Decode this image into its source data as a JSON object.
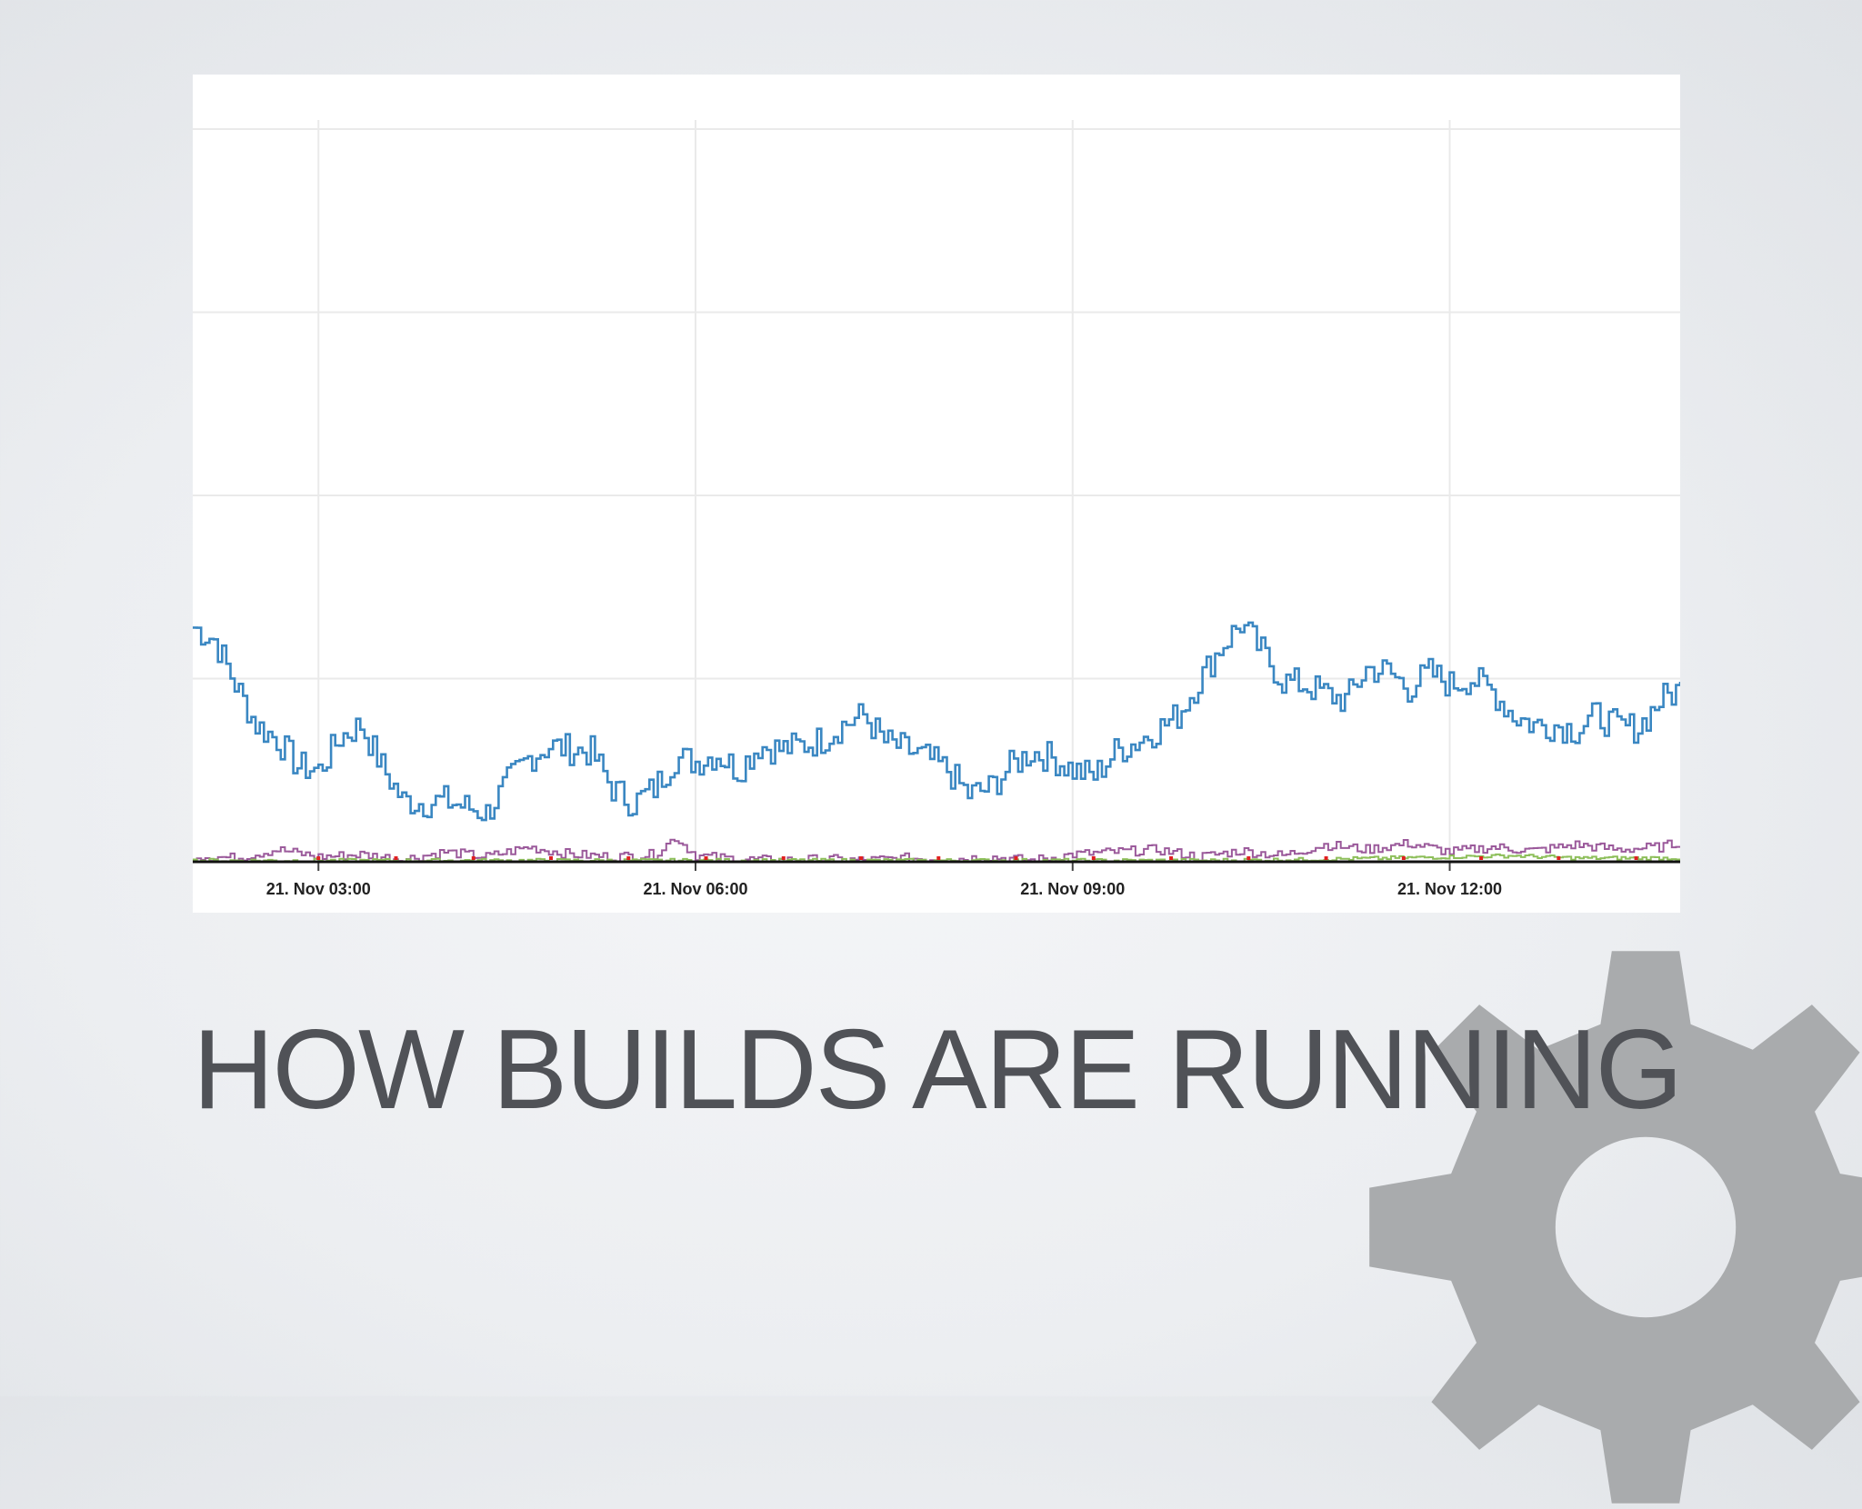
{
  "slide": {
    "title": "HOW BUILDS ARE RUNNING",
    "background_color": "#eceef1",
    "gear_color": "#a9abad",
    "logo_icon": "gear-icon"
  },
  "chart_data": {
    "type": "line",
    "title": "",
    "xlabel": "",
    "ylabel": "",
    "x_tick_labels": [
      "21. Nov 03:00",
      "21. Nov 06:00",
      "21. Nov 09:00",
      "21. Nov 12:00"
    ],
    "xlim": [
      "21. Nov 02:00",
      "21. Nov 13:50"
    ],
    "ylim": [
      0,
      600
    ],
    "y_gridlines": [
      150,
      300,
      450,
      600
    ],
    "grid": true,
    "legend": "none",
    "line_style": "step",
    "series": [
      {
        "color": "#3a87c2",
        "x": [
          "02:00",
          "02:10",
          "02:20",
          "02:30",
          "02:40",
          "02:50",
          "03:00",
          "03:10",
          "03:20",
          "03:30",
          "03:40",
          "03:50",
          "04:00",
          "04:10",
          "04:20",
          "04:30",
          "04:40",
          "04:50",
          "05:00",
          "05:10",
          "05:20",
          "05:30",
          "05:40",
          "05:50",
          "06:00",
          "06:10",
          "06:20",
          "06:30",
          "06:40",
          "06:50",
          "07:00",
          "07:10",
          "07:20",
          "07:30",
          "07:40",
          "07:50",
          "08:00",
          "08:10",
          "08:20",
          "08:30",
          "08:40",
          "08:50",
          "09:00",
          "09:10",
          "09:20",
          "09:30",
          "09:40",
          "09:50",
          "10:00",
          "10:10",
          "10:20",
          "10:30",
          "10:40",
          "10:50",
          "11:00",
          "11:10",
          "11:20",
          "11:30",
          "11:40",
          "11:50",
          "12:00",
          "12:10",
          "12:20",
          "12:30",
          "12:40",
          "12:50",
          "13:00",
          "13:10",
          "13:20",
          "13:30",
          "13:40",
          "13:50"
        ],
        "values": [
          192,
          182,
          145,
          112,
          100,
          78,
          75,
          102,
          112,
          78,
          50,
          48,
          50,
          45,
          40,
          65,
          85,
          95,
          92,
          90,
          60,
          48,
          60,
          85,
          82,
          88,
          75,
          95,
          92,
          95,
          100,
          112,
          120,
          98,
          92,
          85,
          75,
          55,
          60,
          78,
          90,
          85,
          75,
          70,
          90,
          98,
          108,
          120,
          148,
          175,
          195,
          172,
          148,
          145,
          138,
          132,
          158,
          156,
          142,
          155,
          145,
          150,
          140,
          120,
          112,
          112,
          108,
          120,
          110,
          110,
          132,
          142
        ]
      },
      {
        "color": "#9b5a9b",
        "x": [
          "02:00",
          "02:20",
          "02:40",
          "03:00",
          "03:20",
          "03:40",
          "04:00",
          "04:20",
          "04:40",
          "05:00",
          "05:20",
          "05:40",
          "05:50",
          "06:00",
          "06:20",
          "06:40",
          "07:00",
          "07:20",
          "07:40",
          "08:00",
          "08:20",
          "08:40",
          "09:00",
          "09:20",
          "09:40",
          "10:00",
          "10:20",
          "10:40",
          "11:00",
          "11:20",
          "11:40",
          "12:00",
          "12:20",
          "12:40",
          "13:00",
          "13:20",
          "13:40",
          "13:50"
        ],
        "values": [
          5,
          3,
          10,
          4,
          6,
          2,
          8,
          4,
          12,
          6,
          4,
          6,
          20,
          5,
          2,
          1,
          2,
          1,
          3,
          2,
          4,
          1,
          6,
          8,
          10,
          4,
          9,
          5,
          14,
          10,
          15,
          8,
          12,
          9,
          14,
          10,
          12,
          16
        ]
      },
      {
        "color": "#8dbf5a",
        "x": [
          "02:00",
          "06:00",
          "10:00",
          "11:00",
          "11:30",
          "12:00",
          "12:30",
          "13:00",
          "13:50"
        ],
        "values": [
          1,
          1,
          1,
          2,
          3,
          4,
          5,
          3,
          3
        ]
      },
      {
        "color": "#e02020",
        "x": [
          "02:00",
          "13:50"
        ],
        "values": [
          0,
          0
        ]
      }
    ]
  }
}
